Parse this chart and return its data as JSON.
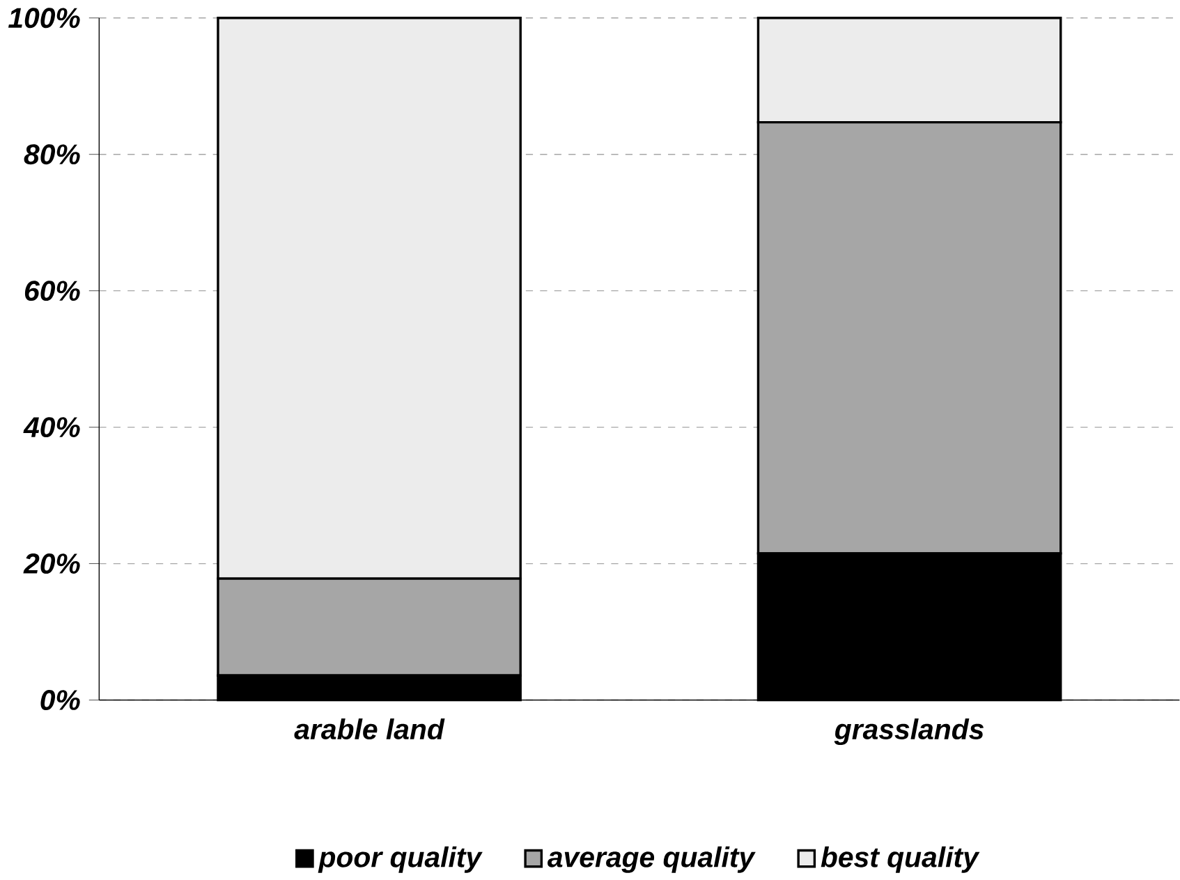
{
  "chart_data": {
    "type": "bar",
    "stacked": true,
    "categories": [
      "arable land",
      "grasslands"
    ],
    "series": [
      {
        "name": "poor quality",
        "color": "#000000",
        "values": [
          3.6,
          21.5
        ]
      },
      {
        "name": "average quality",
        "color": "#a6a6a6",
        "values": [
          14.2,
          63.2
        ]
      },
      {
        "name": "best quality",
        "color": "#ececec",
        "values": [
          82.2,
          15.3
        ]
      }
    ],
    "ylim": [
      0,
      100
    ],
    "yticks": [
      {
        "value": 0,
        "label": "0%"
      },
      {
        "value": 20,
        "label": "20%"
      },
      {
        "value": 40,
        "label": "40%"
      },
      {
        "value": 60,
        "label": "60%"
      },
      {
        "value": 80,
        "label": "80%"
      },
      {
        "value": 100,
        "label": "100%"
      }
    ],
    "grid": "y",
    "legend": "bottom"
  }
}
